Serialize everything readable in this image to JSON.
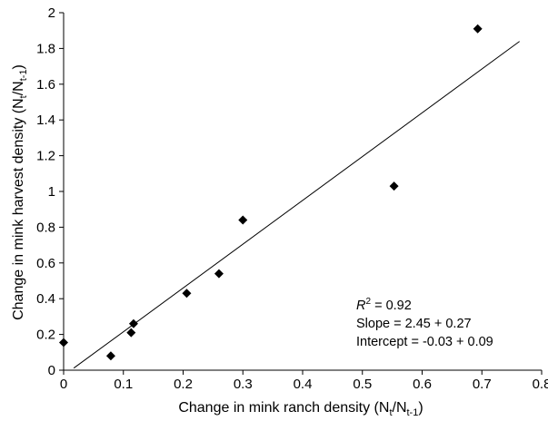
{
  "chart_data": {
    "type": "scatter",
    "title": "",
    "xlabel": {
      "main": "Change in mink ranch density (N",
      "s1": "t",
      "mid": "/N",
      "s2": "t-1",
      "end": ")"
    },
    "ylabel": {
      "main": "Change in mink harvest density (N",
      "s1": "t",
      "mid": "/N",
      "s2": "t-1",
      "end": ")"
    },
    "xlim": [
      0,
      0.8
    ],
    "ylim": [
      0,
      2
    ],
    "xticks": [
      "0",
      "0.1",
      "0.2",
      "0.3",
      "0.4",
      "0.5",
      "0.6",
      "0.7",
      "0.8"
    ],
    "yticks": [
      "0",
      "0.2",
      "0.4",
      "0.6",
      "0.8",
      "1",
      "1.2",
      "1.4",
      "1.6",
      "1.8",
      "2"
    ],
    "grid": false,
    "series": [
      {
        "marker": "diamond",
        "color": "#000000",
        "points": [
          {
            "x": 0.0,
            "y": 0.155
          },
          {
            "x": 0.079,
            "y": 0.08
          },
          {
            "x": 0.113,
            "y": 0.21
          },
          {
            "x": 0.117,
            "y": 0.26
          },
          {
            "x": 0.206,
            "y": 0.43
          },
          {
            "x": 0.26,
            "y": 0.54
          },
          {
            "x": 0.3,
            "y": 0.84
          },
          {
            "x": 0.553,
            "y": 1.03
          },
          {
            "x": 0.693,
            "y": 1.91
          }
        ]
      }
    ],
    "fit_line": {
      "x_start": 0.017,
      "x_end": 0.763,
      "slope": 2.45,
      "intercept": -0.03
    },
    "annotations": {
      "r2": {
        "r": "R",
        "sup": "2",
        "rest": " = 0.92"
      },
      "slope": "Slope = 2.45 + 0.27",
      "intercept": "Intercept = -0.03 + 0.09"
    }
  }
}
